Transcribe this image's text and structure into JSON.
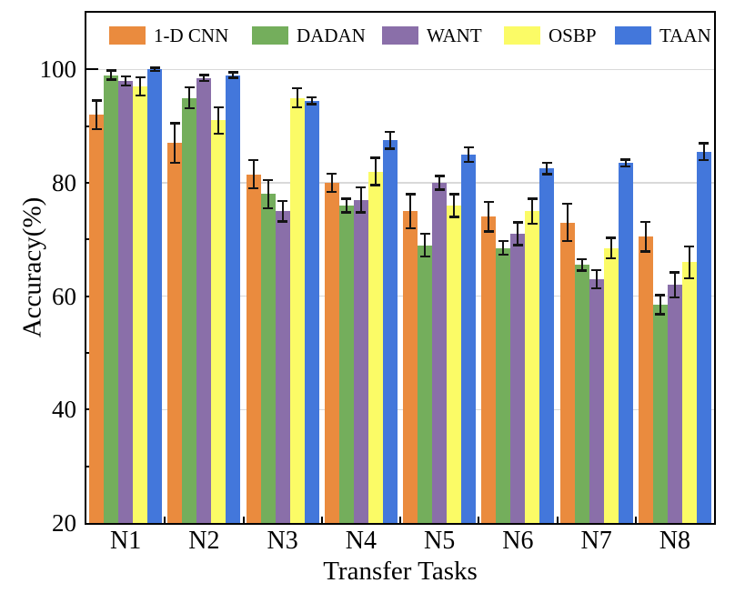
{
  "chart_data": {
    "type": "bar",
    "xlabel": "Transfer Tasks",
    "ylabel": "Accuracy(%)",
    "ylim": [
      20,
      110
    ],
    "yticks_major": [
      20,
      40,
      60,
      80,
      100
    ],
    "yticks_minor": [
      30,
      50,
      70,
      90
    ],
    "gridlines": [
      40,
      60,
      80,
      100
    ],
    "grid_on": true,
    "legend_position": "top-inside",
    "grid_color": "#d9d9d9",
    "error_color": "#141414",
    "categories": [
      "N1",
      "N2",
      "N3",
      "N4",
      "N5",
      "N6",
      "N7",
      "N8"
    ],
    "series": [
      {
        "name": "1-D CNN",
        "color": "#EA8B3E",
        "values": [
          92,
          87,
          81.5,
          80,
          75,
          74,
          73,
          70.5
        ],
        "errors": [
          2.5,
          3.5,
          2.5,
          1.6,
          3,
          2.6,
          3.3,
          2.6
        ]
      },
      {
        "name": "DADAN",
        "color": "#74AE5C",
        "values": [
          99,
          95,
          78,
          76,
          69,
          68.5,
          65.5,
          58.5
        ],
        "errors": [
          0.8,
          1.8,
          2.5,
          1.2,
          2,
          1.2,
          1,
          1.7
        ]
      },
      {
        "name": "WANT",
        "color": "#8A6FA9",
        "values": [
          98,
          98.5,
          75,
          77,
          80,
          71,
          63,
          62
        ],
        "errors": [
          0.8,
          0.5,
          1.8,
          2.2,
          1.2,
          2,
          1.6,
          2.2
        ]
      },
      {
        "name": "OSBP",
        "color": "#FBFB66",
        "values": [
          97,
          91,
          95,
          82,
          76,
          75,
          68.5,
          66
        ],
        "errors": [
          1.6,
          2.3,
          1.7,
          2.4,
          2,
          2.2,
          1.8,
          2.8
        ]
      },
      {
        "name": "TAAN",
        "color": "#4377DB",
        "values": [
          100,
          99,
          94.5,
          87.5,
          85,
          82.5,
          83.5,
          85.5
        ],
        "errors": [
          0.3,
          0.5,
          0.6,
          1.5,
          1.3,
          1,
          0.6,
          1.5
        ]
      }
    ]
  }
}
